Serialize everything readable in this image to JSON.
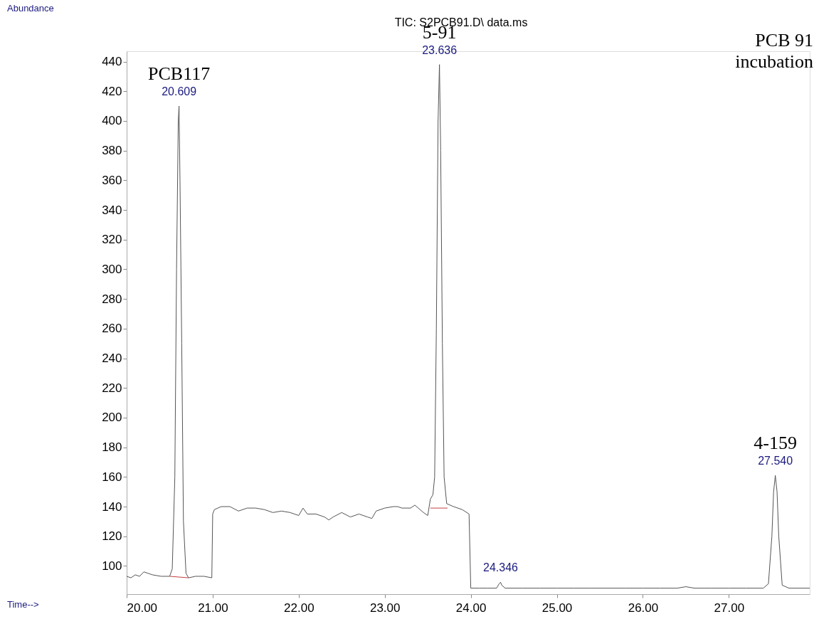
{
  "chart_data": {
    "type": "line",
    "title": "TIC: S2PCB91.D\\ data.ms",
    "xlim": [
      20,
      27.94
    ],
    "ylim": [
      81,
      447
    ],
    "xticks": [
      {
        "value": 20,
        "label": "20.00"
      },
      {
        "value": 21,
        "label": "21.00"
      },
      {
        "value": 22,
        "label": "22.00"
      },
      {
        "value": 23,
        "label": "23.00"
      },
      {
        "value": 24,
        "label": "24.00"
      },
      {
        "value": 25,
        "label": "25.00"
      },
      {
        "value": 26,
        "label": "26.00"
      },
      {
        "value": 27,
        "label": "27.00"
      }
    ],
    "yticks": [
      100,
      120,
      140,
      160,
      180,
      200,
      220,
      240,
      260,
      280,
      300,
      320,
      340,
      360,
      380,
      400,
      420,
      440
    ],
    "grid": false,
    "marker": "none",
    "line_style": "solid",
    "series": [
      {
        "color": "#555555",
        "x": [
          20.0,
          20.05,
          20.1,
          20.15,
          20.2,
          20.25,
          20.3,
          20.4,
          20.5,
          20.53,
          20.56,
          20.58,
          20.6,
          20.609,
          20.62,
          20.64,
          20.66,
          20.69,
          20.72,
          20.8,
          20.9,
          20.99,
          21.0,
          21.02,
          21.1,
          21.2,
          21.3,
          21.4,
          21.5,
          21.6,
          21.7,
          21.8,
          21.9,
          22.0,
          22.05,
          22.1,
          22.2,
          22.3,
          22.35,
          22.4,
          22.5,
          22.6,
          22.7,
          22.8,
          22.85,
          22.9,
          23.0,
          23.1,
          23.15,
          23.2,
          23.3,
          23.35,
          23.45,
          23.5,
          23.53,
          23.56,
          23.58,
          23.6,
          23.62,
          23.636,
          23.65,
          23.67,
          23.69,
          23.72,
          23.8,
          23.9,
          23.98,
          24.0,
          24.1,
          24.2,
          24.3,
          24.33,
          24.346,
          24.36,
          24.4,
          24.6,
          24.8,
          25.0,
          25.2,
          25.4,
          25.6,
          25.8,
          26.0,
          26.2,
          26.4,
          26.5,
          26.6,
          26.8,
          27.0,
          27.2,
          27.4,
          27.46,
          27.5,
          27.52,
          27.54,
          27.56,
          27.58,
          27.62,
          27.7,
          27.8,
          27.94
        ],
        "values": [
          93,
          92,
          94,
          93,
          96,
          95,
          94,
          93,
          93,
          98,
          160,
          300,
          400,
          410,
          360,
          250,
          130,
          95,
          92,
          93,
          93,
          92,
          135,
          138,
          140,
          140,
          137,
          139,
          139,
          138,
          136,
          137,
          136,
          134,
          139,
          135,
          135,
          133,
          131,
          133,
          136,
          133,
          135,
          133,
          132,
          137,
          139,
          140,
          140,
          139,
          139,
          141,
          136,
          134,
          145,
          148,
          160,
          260,
          400,
          438,
          380,
          250,
          160,
          142,
          140,
          138,
          135,
          85,
          85,
          85,
          85,
          88,
          89,
          87,
          85,
          85,
          85,
          85,
          85,
          85,
          85,
          85,
          85,
          85,
          85,
          86,
          85,
          85,
          85,
          85,
          85,
          88,
          120,
          150,
          161,
          150,
          120,
          87,
          85,
          85,
          85
        ]
      },
      {
        "color": "#c04040",
        "x": [
          20.5,
          20.72
        ],
        "values": [
          93,
          92
        ]
      },
      {
        "color": "#c04040",
        "x": [
          23.53,
          23.73
        ],
        "values": [
          139,
          139
        ]
      }
    ],
    "annotations": [
      {
        "text": "20.609",
        "x": 20.609,
        "y": 410
      },
      {
        "text": "PCB117",
        "x": 20.609,
        "y": 410
      },
      {
        "text": "23.636",
        "x": 23.636,
        "y": 438
      },
      {
        "text": "5-91",
        "x": 23.636,
        "y": 438
      },
      {
        "text": "24.346",
        "x": 24.346,
        "y": 89
      },
      {
        "text": "27.540",
        "x": 27.54,
        "y": 161
      },
      {
        "text": "4-159",
        "x": 27.54,
        "y": 161
      },
      "Abundance",
      "Time-->",
      "PCB 91 incubation"
    ]
  }
}
